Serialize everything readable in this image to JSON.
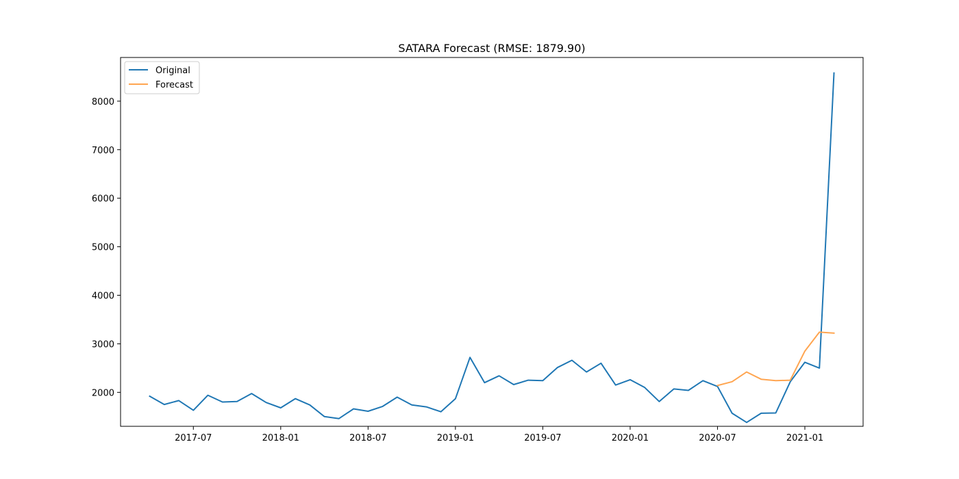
{
  "chart_data": {
    "type": "line",
    "title": "SATARA Forecast (RMSE: 1879.90)",
    "xlabel": "",
    "ylabel": "",
    "x_ticks": [
      "2017-07",
      "2018-01",
      "2018-07",
      "2019-01",
      "2019-07",
      "2020-01",
      "2020-07",
      "2021-01"
    ],
    "y_ticks": [
      "2000",
      "3000",
      "4000",
      "5000",
      "6000",
      "7000",
      "8000"
    ],
    "ylim": [
      1300,
      8900
    ],
    "xlim": [
      "2017-02",
      "2021-05"
    ],
    "grid": false,
    "legend_position": "upper-left",
    "series": [
      {
        "name": "Original",
        "color": "#1f77b4",
        "x": [
          "2017-04",
          "2017-05",
          "2017-06",
          "2017-07",
          "2017-08",
          "2017-09",
          "2017-10",
          "2017-11",
          "2017-12",
          "2018-01",
          "2018-02",
          "2018-03",
          "2018-04",
          "2018-05",
          "2018-06",
          "2018-07",
          "2018-08",
          "2018-09",
          "2018-10",
          "2018-11",
          "2018-12",
          "2019-01",
          "2019-02",
          "2019-03",
          "2019-04",
          "2019-05",
          "2019-06",
          "2019-07",
          "2019-08",
          "2019-09",
          "2019-10",
          "2019-11",
          "2019-12",
          "2020-01",
          "2020-02",
          "2020-03",
          "2020-04",
          "2020-05",
          "2020-06",
          "2020-07",
          "2020-08",
          "2020-09",
          "2020-10",
          "2020-11",
          "2020-12",
          "2021-01",
          "2021-02",
          "2021-03"
        ],
        "values": [
          1920,
          1750,
          1830,
          1630,
          1940,
          1800,
          1810,
          1975,
          1790,
          1680,
          1870,
          1740,
          1500,
          1460,
          1660,
          1610,
          1710,
          1900,
          1740,
          1700,
          1600,
          1870,
          2720,
          2200,
          2340,
          2160,
          2250,
          2240,
          2510,
          2660,
          2420,
          2600,
          2150,
          2260,
          2100,
          1810,
          2070,
          2040,
          2240,
          2120,
          1570,
          1380,
          1570,
          1575,
          2220,
          2620,
          2500,
          8580
        ]
      },
      {
        "name": "Forecast",
        "color": "#ffa550",
        "x": [
          "2020-07",
          "2020-08",
          "2020-09",
          "2020-10",
          "2020-11",
          "2020-12",
          "2021-01",
          "2021-02",
          "2021-03"
        ],
        "values": [
          2140,
          2220,
          2420,
          2270,
          2240,
          2250,
          2850,
          3240,
          3220
        ]
      }
    ]
  }
}
